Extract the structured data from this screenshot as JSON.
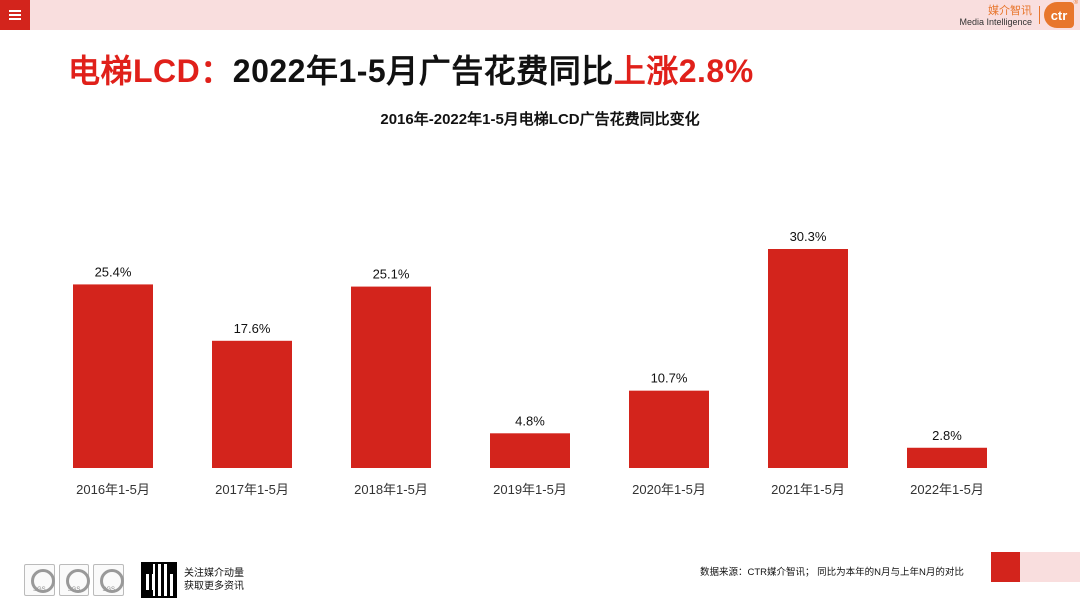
{
  "header": {
    "menu_icon": "hamburger-icon",
    "brand_cn": "媒介智讯",
    "brand_en": "Media Intelligence",
    "logo_text": "ctr",
    "logo_reg": "®"
  },
  "headline": {
    "part1": "电梯LCD：",
    "part2": "2022年1-5月广告花费同比",
    "part3": "上涨2.8%"
  },
  "colors": {
    "accent": "#d3241c",
    "headline_red": "#e0201a",
    "pink": "#f9dede",
    "brand_orange": "#e8762c"
  },
  "chart_data": {
    "type": "bar",
    "title": "2016年-2022年1-5月电梯LCD广告花费同比变化",
    "categories": [
      "2016年1-5月",
      "2017年1-5月",
      "2018年1-5月",
      "2019年1-5月",
      "2020年1-5月",
      "2021年1-5月",
      "2022年1-5月"
    ],
    "values": [
      25.4,
      17.6,
      25.1,
      4.8,
      10.7,
      30.3,
      2.8
    ],
    "labels": [
      "25.4%",
      "17.6%",
      "25.1%",
      "4.8%",
      "10.7%",
      "30.3%",
      "2.8%"
    ],
    "xlabel": "",
    "ylabel": "",
    "ylim": [
      0,
      30.3
    ],
    "grid": false,
    "bar_color": "#d3241c"
  },
  "footer": {
    "badges": [
      "SGS",
      "SGS",
      "SGS"
    ],
    "follow_line1": "关注媒介动量",
    "follow_line2": "获取更多资讯",
    "source": "数据来源：CTR媒介智讯； 同比为本年的N月与上年N月的对比"
  }
}
